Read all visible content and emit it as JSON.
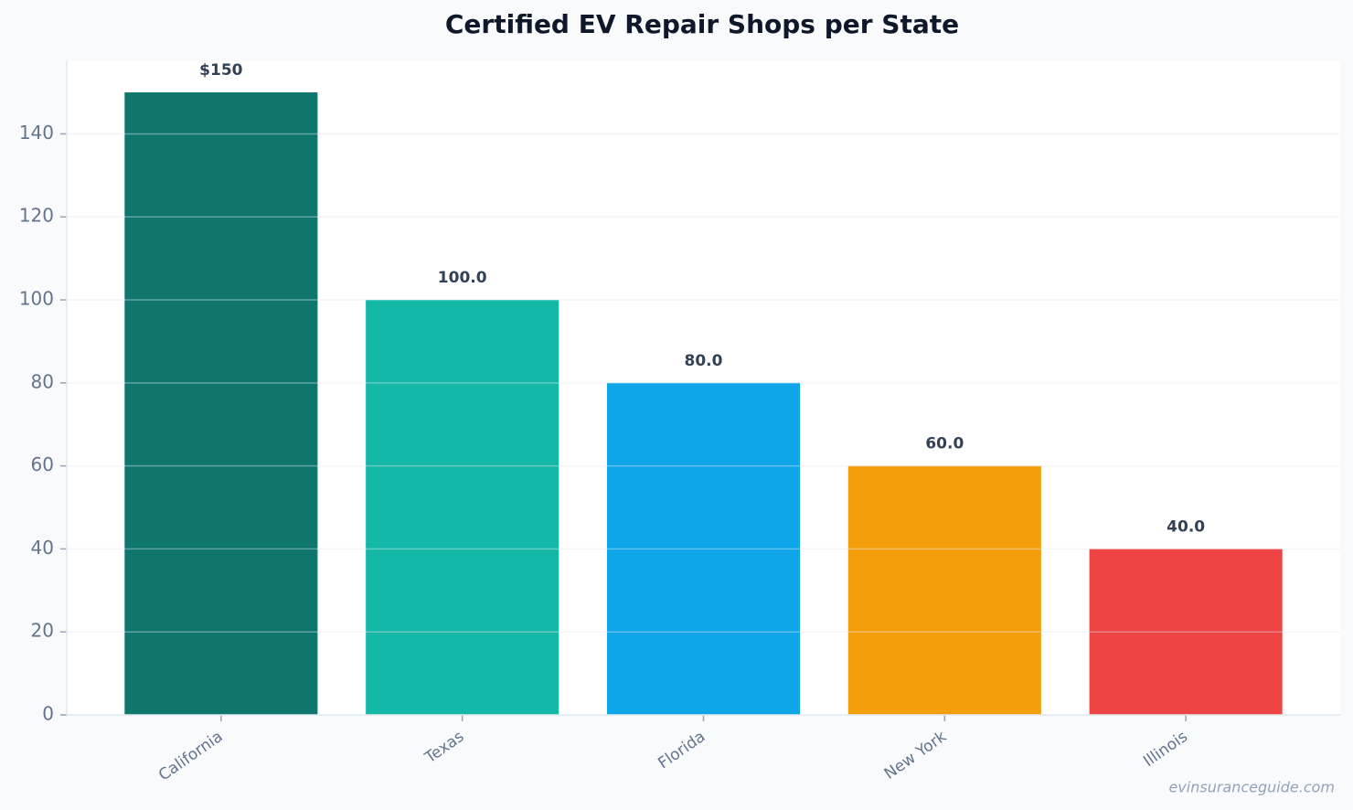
{
  "chart_data": {
    "type": "bar",
    "title": "Certified EV Repair Shops per State",
    "categories": [
      "California",
      "Texas",
      "Florida",
      "New York",
      "Illinois"
    ],
    "values": [
      150,
      100,
      80,
      60,
      40
    ],
    "value_labels": [
      "$150",
      "100.0",
      "80.0",
      "60.0",
      "40.0"
    ],
    "colors": [
      "#0f766e",
      "#14b8a6",
      "#0ea5e9",
      "#f59e0b",
      "#ef4444"
    ],
    "ylim": [
      0,
      157.5
    ],
    "yticks": [
      0,
      20,
      40,
      60,
      80,
      100,
      120,
      140
    ],
    "grid": true,
    "watermark": "evinsuranceguide.com"
  }
}
